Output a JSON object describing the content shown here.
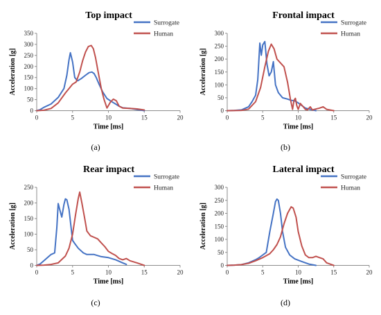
{
  "chart_data": [
    {
      "type": "line",
      "panel_label": "(a)",
      "title": "Top impact",
      "xlabel": "Time [ms]",
      "ylabel": "Acceleration [g]",
      "xlim": [
        0,
        20
      ],
      "ylim": [
        0,
        350
      ],
      "xticks": [
        0,
        5,
        10,
        15,
        20
      ],
      "yticks": [
        0,
        50,
        100,
        150,
        200,
        250,
        300,
        350
      ],
      "grid": false,
      "legend": "top-right",
      "series": [
        {
          "name": "Surrogate",
          "color": "#4472c4",
          "x": [
            0,
            0.5,
            1,
            2,
            3,
            3.8,
            4.2,
            4.5,
            4.7,
            5.0,
            5.3,
            5.7,
            6.2,
            6.8,
            7.3,
            7.7,
            8.0,
            8.3,
            8.7,
            9.2,
            9.8,
            10.5,
            11.0,
            11.5,
            12,
            13,
            14,
            15
          ],
          "y": [
            0,
            5,
            15,
            30,
            60,
            100,
            160,
            230,
            262,
            220,
            150,
            135,
            145,
            160,
            172,
            175,
            168,
            150,
            120,
            85,
            55,
            40,
            30,
            20,
            13,
            10,
            5,
            0
          ]
        },
        {
          "name": "Human",
          "color": "#c0504d",
          "x": [
            0,
            1,
            2,
            3,
            4,
            5,
            5.5,
            6.0,
            6.4,
            6.8,
            7.2,
            7.6,
            7.9,
            8.2,
            8.6,
            9.0,
            9.4,
            9.8,
            10.3,
            10.7,
            11.1,
            11.5,
            12,
            13,
            14,
            15
          ],
          "y": [
            0,
            2,
            10,
            35,
            80,
            120,
            130,
            175,
            225,
            265,
            290,
            295,
            280,
            240,
            170,
            100,
            50,
            12,
            40,
            52,
            45,
            20,
            12,
            10,
            8,
            3
          ]
        }
      ]
    },
    {
      "type": "line",
      "panel_label": "(b)",
      "title": "Frontal impact",
      "xlabel": "Time [ms]",
      "ylabel": "Acceleration [g]",
      "xlim": [
        0,
        20
      ],
      "ylim": [
        0,
        300
      ],
      "xticks": [
        0,
        5,
        10,
        15,
        20
      ],
      "yticks": [
        0,
        50,
        100,
        150,
        200,
        250,
        300
      ],
      "grid": false,
      "legend": "top-right",
      "series": [
        {
          "name": "Surrogate",
          "color": "#4472c4",
          "x": [
            0,
            1,
            2,
            3,
            3.5,
            4.0,
            4.3,
            4.6,
            4.8,
            5.0,
            5.3,
            5.6,
            5.9,
            6.2,
            6.5,
            6.8,
            7.2,
            7.8,
            8.5,
            9.0,
            9.5,
            10.0,
            10.5,
            11.0,
            12.0,
            12.5
          ],
          "y": [
            0,
            1,
            3,
            15,
            35,
            60,
            120,
            262,
            215,
            255,
            268,
            180,
            135,
            150,
            190,
            100,
            70,
            50,
            45,
            40,
            38,
            30,
            20,
            10,
            3,
            0
          ]
        },
        {
          "name": "Human",
          "color": "#c0504d",
          "x": [
            0,
            2,
            3,
            4,
            4.7,
            5.3,
            5.8,
            6.2,
            6.6,
            7.0,
            7.5,
            8.0,
            8.5,
            8.9,
            9.2,
            9.4,
            9.6,
            9.8,
            10.0,
            10.3,
            10.7,
            11.0,
            11.3,
            11.7,
            12.0,
            13.0,
            13.5,
            14.0,
            15.0
          ],
          "y": [
            0,
            1,
            6,
            35,
            90,
            170,
            230,
            258,
            240,
            200,
            185,
            170,
            110,
            45,
            5,
            40,
            48,
            20,
            5,
            28,
            15,
            5,
            3,
            15,
            3,
            10,
            15,
            5,
            0
          ]
        }
      ]
    },
    {
      "type": "line",
      "panel_label": "(c)",
      "title": "Rear impact",
      "xlabel": "Time [ms]",
      "ylabel": "Acceleration [g]",
      "xlim": [
        0,
        20
      ],
      "ylim": [
        0,
        250
      ],
      "xticks": [
        0,
        5,
        10,
        15,
        20
      ],
      "yticks": [
        0,
        50,
        100,
        150,
        200,
        250
      ],
      "grid": false,
      "legend": "top-right",
      "series": [
        {
          "name": "Surrogate",
          "color": "#4472c4",
          "x": [
            0,
            0.5,
            1,
            1.5,
            2,
            2.5,
            2.8,
            3.0,
            3.2,
            3.5,
            3.8,
            4.0,
            4.2,
            4.5,
            4.8,
            5.0,
            5.3,
            5.8,
            6.5,
            7.0,
            8.0,
            9.0,
            10.0,
            11.0,
            12.0,
            12.5
          ],
          "y": [
            0,
            5,
            15,
            25,
            35,
            40,
            120,
            198,
            180,
            155,
            195,
            213,
            210,
            180,
            120,
            80,
            70,
            55,
            40,
            35,
            35,
            28,
            25,
            18,
            8,
            3
          ]
        },
        {
          "name": "Human",
          "color": "#c0504d",
          "x": [
            0,
            1,
            2,
            3,
            4,
            4.5,
            5.0,
            5.4,
            5.8,
            6.0,
            6.3,
            6.7,
            7.0,
            7.5,
            8.0,
            8.5,
            9.0,
            9.5,
            10.0,
            10.5,
            11.0,
            11.5,
            12.0,
            12.5,
            13.0,
            14.0,
            15.0
          ],
          "y": [
            0,
            1,
            3,
            8,
            30,
            55,
            100,
            160,
            215,
            235,
            200,
            150,
            110,
            95,
            90,
            85,
            72,
            60,
            45,
            38,
            32,
            22,
            18,
            22,
            15,
            8,
            0
          ]
        }
      ]
    },
    {
      "type": "line",
      "panel_label": "(d)",
      "title": "Lateral impact",
      "xlabel": "Time [ms]",
      "ylabel": "Acceleration [g]",
      "xlim": [
        0,
        20
      ],
      "ylim": [
        0,
        300
      ],
      "xticks": [
        0,
        5,
        10,
        15,
        20
      ],
      "yticks": [
        0,
        50,
        100,
        150,
        200,
        250,
        300
      ],
      "grid": false,
      "legend": "top-right",
      "series": [
        {
          "name": "Surrogate",
          "color": "#4472c4",
          "x": [
            0,
            1,
            2,
            3,
            4,
            4.5,
            5.0,
            5.5,
            6.0,
            6.5,
            6.8,
            7.0,
            7.2,
            7.5,
            7.8,
            8.2,
            8.8,
            9.5,
            10.5,
            11.5,
            12.5
          ],
          "y": [
            0,
            1,
            3,
            10,
            22,
            30,
            40,
            50,
            130,
            200,
            245,
            255,
            250,
            200,
            130,
            70,
            40,
            25,
            15,
            5,
            0
          ]
        },
        {
          "name": "Human",
          "color": "#c0504d",
          "x": [
            0,
            1,
            2,
            3,
            4,
            5,
            6,
            6.5,
            7.0,
            7.5,
            8.0,
            8.5,
            9.0,
            9.3,
            9.7,
            10.0,
            10.5,
            11.0,
            11.5,
            12.0,
            12.5,
            13.0,
            13.5,
            14.0,
            15.0
          ],
          "y": [
            0,
            1,
            3,
            8,
            18,
            30,
            45,
            60,
            80,
            110,
            160,
            200,
            225,
            220,
            185,
            130,
            75,
            40,
            30,
            30,
            35,
            30,
            25,
            10,
            0
          ]
        }
      ]
    }
  ]
}
